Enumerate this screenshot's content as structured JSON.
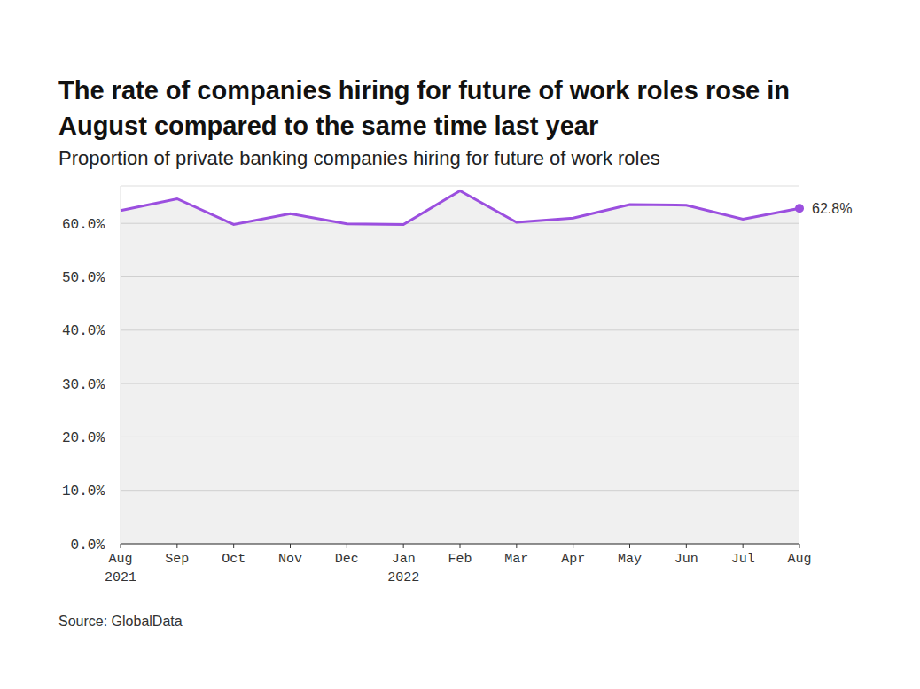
{
  "chart_data": {
    "type": "area",
    "title": "The rate of companies hiring for future of work roles rose in August compared to the same time last year",
    "subtitle": "Proportion of private banking companies hiring for future of work roles",
    "source": "Source: GlobalData",
    "categories": [
      "Aug\n2021",
      "Sep",
      "Oct",
      "Nov",
      "Dec",
      "Jan\n2022",
      "Feb",
      "Mar",
      "Apr",
      "May",
      "Jun",
      "Jul",
      "Aug"
    ],
    "values": [
      62.4,
      64.6,
      59.8,
      61.8,
      59.9,
      59.8,
      66.1,
      60.2,
      61.0,
      63.5,
      63.4,
      60.8,
      62.8
    ],
    "value_labels": [
      null,
      null,
      null,
      null,
      null,
      null,
      null,
      null,
      null,
      null,
      null,
      null,
      "62.8%"
    ],
    "color": "#9b4fdf",
    "ylim": [
      0,
      67
    ],
    "yticks": [
      {
        "value": 0,
        "label": "0.0%"
      },
      {
        "value": 10,
        "label": "10.0%"
      },
      {
        "value": 20,
        "label": "20.0%"
      },
      {
        "value": 30,
        "label": "30.0%"
      },
      {
        "value": 40,
        "label": "40.0%"
      },
      {
        "value": 50,
        "label": "50.0%"
      },
      {
        "value": 60,
        "label": "60.0%"
      }
    ],
    "grid": true
  }
}
